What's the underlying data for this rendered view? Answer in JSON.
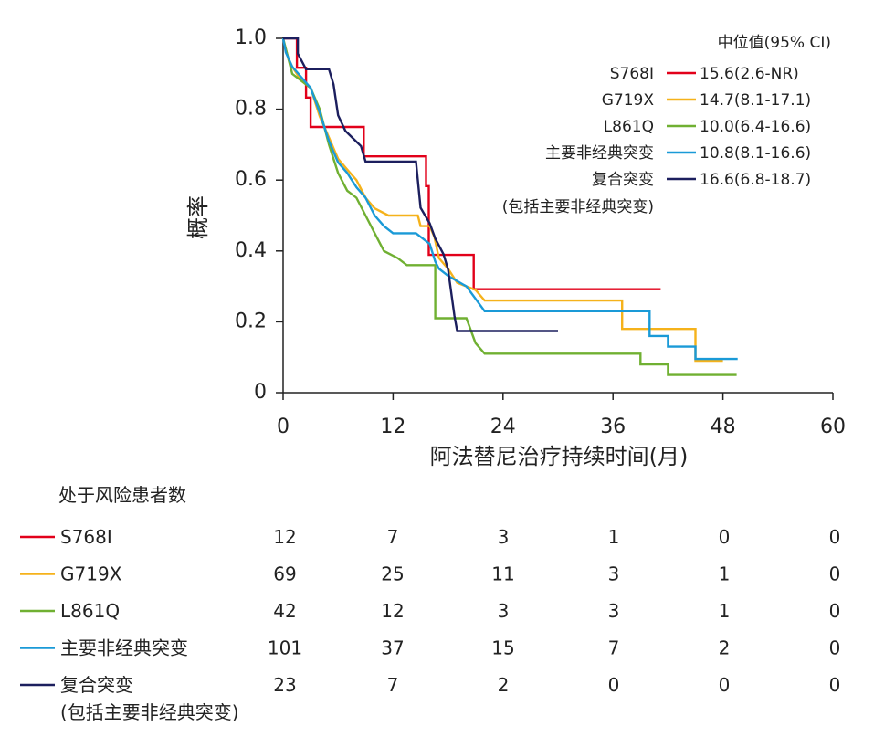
{
  "chart_data": {
    "type": "line",
    "subtype": "kaplan-meier",
    "xlabel": "阿法替尼治疗持续时间(月)",
    "ylabel": "概率",
    "xlim": [
      0,
      60
    ],
    "ylim": [
      0,
      1.0
    ],
    "xticks": [
      "0",
      "12",
      "24",
      "36",
      "48",
      "60"
    ],
    "yticks": [
      "0",
      "0.2",
      "0.4",
      "0.6",
      "0.8",
      "1.0"
    ],
    "grid": false,
    "legend": {
      "title": "中位值(95% CI)",
      "placement": "top-right"
    },
    "series": [
      {
        "name": "S768I",
        "median_ci": "15.6(2.6-NR)",
        "color": "#e2001a",
        "points": [
          [
            0,
            1.0
          ],
          [
            1.5,
            1.0
          ],
          [
            1.5,
            0.917
          ],
          [
            2.5,
            0.917
          ],
          [
            2.5,
            0.833
          ],
          [
            3,
            0.833
          ],
          [
            3,
            0.75
          ],
          [
            8.8,
            0.75
          ],
          [
            8.8,
            0.667
          ],
          [
            15.6,
            0.667
          ],
          [
            15.6,
            0.583
          ],
          [
            15.9,
            0.583
          ],
          [
            15.9,
            0.389
          ],
          [
            20.8,
            0.389
          ],
          [
            20.8,
            0.292
          ],
          [
            41.2,
            0.292
          ]
        ]
      },
      {
        "name": "G719X",
        "median_ci": "14.7(8.1-17.1)",
        "color": "#f5b21b",
        "points": [
          [
            0,
            1.0
          ],
          [
            0.3,
            0.97
          ],
          [
            0.6,
            0.94
          ],
          [
            1,
            0.92
          ],
          [
            2,
            0.88
          ],
          [
            3,
            0.86
          ],
          [
            4,
            0.78
          ],
          [
            5,
            0.72
          ],
          [
            6,
            0.66
          ],
          [
            7,
            0.63
          ],
          [
            8,
            0.6
          ],
          [
            9,
            0.55
          ],
          [
            10,
            0.52
          ],
          [
            11.5,
            0.5
          ],
          [
            13,
            0.5
          ],
          [
            14.7,
            0.5
          ],
          [
            15,
            0.47
          ],
          [
            16,
            0.47
          ],
          [
            16.5,
            0.44
          ],
          [
            17,
            0.38
          ],
          [
            18,
            0.35
          ],
          [
            19,
            0.31
          ],
          [
            21,
            0.29
          ],
          [
            22,
            0.26
          ],
          [
            37,
            0.26
          ],
          [
            37,
            0.18
          ],
          [
            45,
            0.18
          ],
          [
            45,
            0.09
          ],
          [
            48,
            0.09
          ]
        ]
      },
      {
        "name": "L861Q",
        "median_ci": "10.0(6.4-16.6)",
        "color": "#70b032",
        "points": [
          [
            0,
            1.0
          ],
          [
            0.5,
            0.95
          ],
          [
            1,
            0.9
          ],
          [
            2,
            0.88
          ],
          [
            3,
            0.86
          ],
          [
            4,
            0.8
          ],
          [
            5,
            0.7
          ],
          [
            6,
            0.62
          ],
          [
            7,
            0.57
          ],
          [
            8,
            0.55
          ],
          [
            9,
            0.5
          ],
          [
            10,
            0.45
          ],
          [
            11,
            0.4
          ],
          [
            12.5,
            0.38
          ],
          [
            13.5,
            0.36
          ],
          [
            16.6,
            0.36
          ],
          [
            16.6,
            0.21
          ],
          [
            20,
            0.21
          ],
          [
            21,
            0.14
          ],
          [
            22,
            0.11
          ],
          [
            39,
            0.11
          ],
          [
            39,
            0.08
          ],
          [
            42,
            0.08
          ],
          [
            42,
            0.05
          ],
          [
            49.5,
            0.05
          ]
        ]
      },
      {
        "name": "主要非经典突变",
        "median_ci": "10.8(8.1-16.6)",
        "color": "#1a9ad7",
        "points": [
          [
            0,
            1.0
          ],
          [
            0.3,
            0.96
          ],
          [
            1,
            0.92
          ],
          [
            2,
            0.89
          ],
          [
            3,
            0.86
          ],
          [
            4,
            0.79
          ],
          [
            5,
            0.71
          ],
          [
            6,
            0.65
          ],
          [
            7,
            0.62
          ],
          [
            8,
            0.58
          ],
          [
            9,
            0.55
          ],
          [
            10,
            0.5
          ],
          [
            11,
            0.47
          ],
          [
            12,
            0.45
          ],
          [
            14.5,
            0.45
          ],
          [
            15,
            0.44
          ],
          [
            16,
            0.42
          ],
          [
            16.6,
            0.37
          ],
          [
            17,
            0.35
          ],
          [
            18,
            0.33
          ],
          [
            20,
            0.3
          ],
          [
            22,
            0.23
          ],
          [
            40,
            0.23
          ],
          [
            40,
            0.16
          ],
          [
            42,
            0.16
          ],
          [
            42,
            0.13
          ],
          [
            45,
            0.13
          ],
          [
            45,
            0.095
          ],
          [
            49.6,
            0.095
          ]
        ]
      },
      {
        "name": "复合突变",
        "median_ci": "16.6(6.8-18.7)",
        "color": "#1c1f5e",
        "points": [
          [
            0,
            1.0
          ],
          [
            1.6,
            1.0
          ],
          [
            1.6,
            0.957
          ],
          [
            2.5,
            0.913
          ],
          [
            5,
            0.913
          ],
          [
            5.5,
            0.87
          ],
          [
            6,
            0.783
          ],
          [
            6.8,
            0.739
          ],
          [
            8.5,
            0.696
          ],
          [
            9,
            0.652
          ],
          [
            14.5,
            0.652
          ],
          [
            15,
            0.522
          ],
          [
            16,
            0.478
          ],
          [
            16.6,
            0.435
          ],
          [
            17.5,
            0.391
          ],
          [
            18,
            0.348
          ],
          [
            18.7,
            0.217
          ],
          [
            19,
            0.174
          ],
          [
            30,
            0.174
          ]
        ]
      }
    ],
    "legend_note": "(包括主要非经典突变)",
    "risk_table": {
      "title": "处于风险患者数",
      "timepoints": [
        0,
        12,
        24,
        36,
        48,
        60
      ],
      "rows": [
        {
          "label": "S768I",
          "color": "#e2001a",
          "values": [
            "12",
            "7",
            "3",
            "1",
            "0",
            "0"
          ]
        },
        {
          "label": "G719X",
          "color": "#f5b21b",
          "values": [
            "69",
            "25",
            "11",
            "3",
            "1",
            "0"
          ]
        },
        {
          "label": "L861Q",
          "color": "#70b032",
          "values": [
            "42",
            "12",
            "3",
            "3",
            "1",
            "0"
          ]
        },
        {
          "label": "主要非经典突变",
          "color": "#1a9ad7",
          "values": [
            "101",
            "37",
            "15",
            "7",
            "2",
            "0"
          ]
        },
        {
          "label": "复合突变",
          "sublabel": "(包括主要非经典突变)",
          "color": "#1c1f5e",
          "values": [
            "23",
            "7",
            "2",
            "0",
            "0",
            "0"
          ]
        }
      ]
    }
  }
}
